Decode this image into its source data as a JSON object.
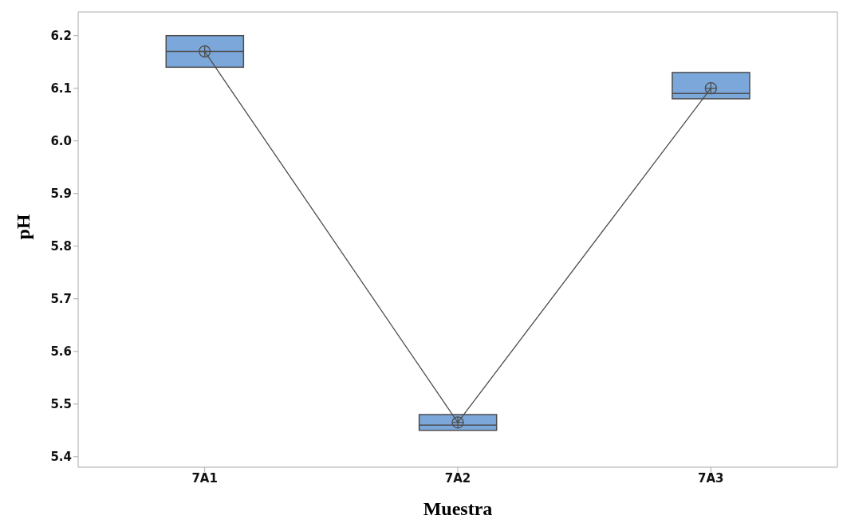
{
  "chart_data": {
    "type": "box",
    "xlabel": "Muestra",
    "ylabel": "pH",
    "categories": [
      "7A1",
      "7A2",
      "7A3"
    ],
    "color": "#7ba7da",
    "boxes": [
      {
        "low": 6.14,
        "q1": 6.14,
        "median": 6.17,
        "q3": 6.2,
        "high": 6.2,
        "mean": 6.17
      },
      {
        "low": 5.45,
        "q1": 5.45,
        "median": 5.46,
        "q3": 5.48,
        "high": 5.48,
        "mean": 5.465
      },
      {
        "low": 6.08,
        "q1": 6.08,
        "median": 6.09,
        "q3": 6.13,
        "high": 6.13,
        "mean": 6.1
      }
    ],
    "series": [
      {
        "type": "line",
        "color": "#4d4d4d",
        "values": [
          6.17,
          5.465,
          6.1
        ]
      }
    ],
    "ylim": [
      5.38,
      6.245
    ],
    "yticks": [
      {
        "value": 5.4,
        "label": "5.4"
      },
      {
        "value": 5.5,
        "label": "5.5"
      },
      {
        "value": 5.6,
        "label": "5.6"
      },
      {
        "value": 5.7,
        "label": "5.7"
      },
      {
        "value": 5.8,
        "label": "5.8"
      },
      {
        "value": 5.9,
        "label": "5.9"
      },
      {
        "value": 6,
        "label": "6.0"
      },
      {
        "value": 6.1,
        "label": "6.1"
      },
      {
        "value": 6.2,
        "label": "6.2"
      }
    ],
    "grid": false
  }
}
